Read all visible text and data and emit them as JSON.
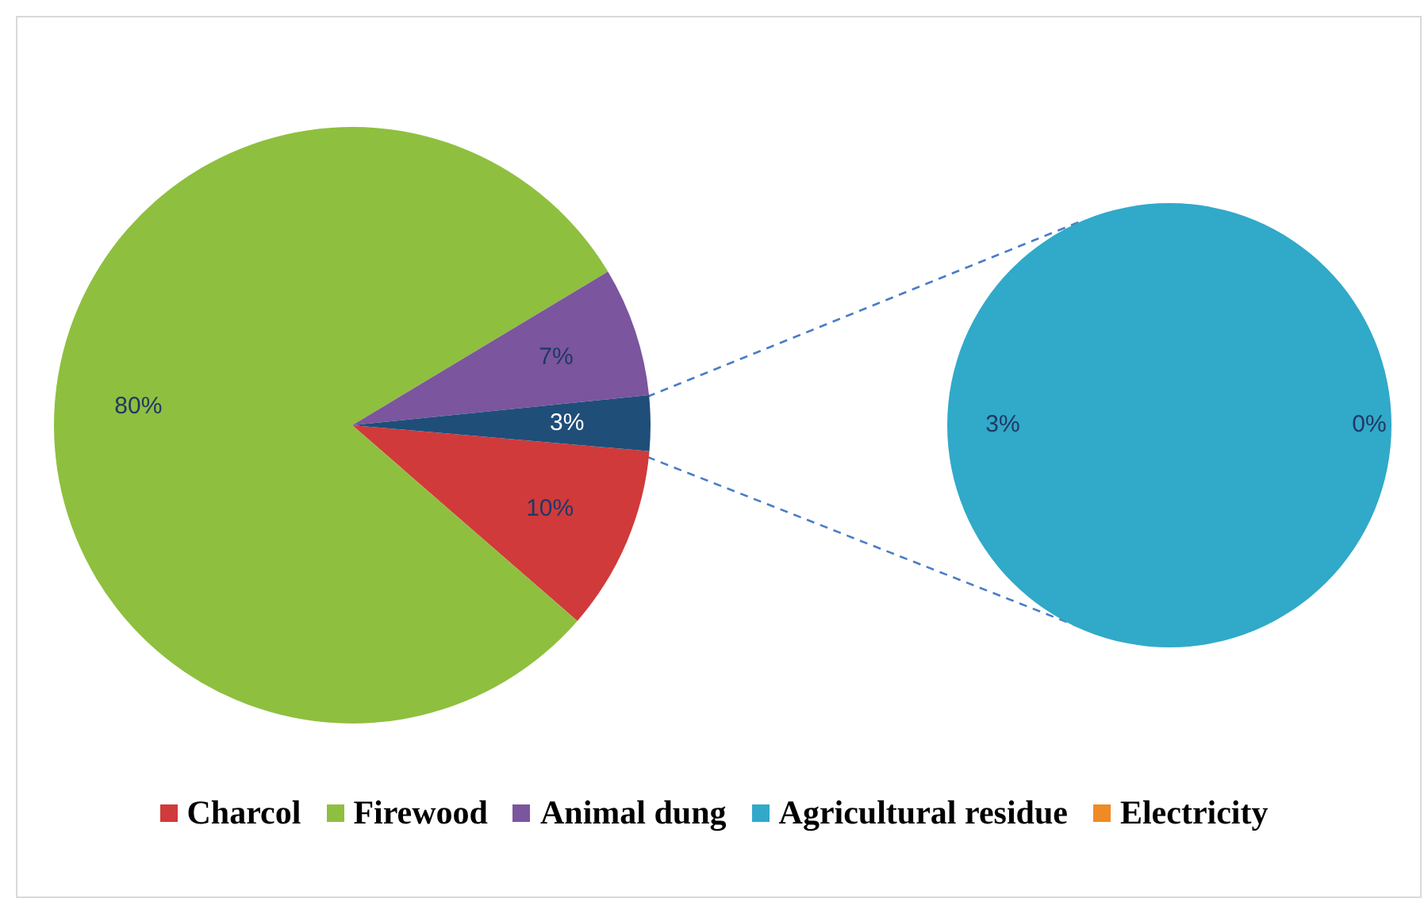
{
  "chart_data": [
    {
      "type": "pie",
      "categories": [
        "Charcol",
        "Firewood",
        "Animal dung",
        null
      ],
      "values": [
        10,
        80,
        7,
        3
      ],
      "colors": [
        "#d03a3a",
        "#8fbf3f",
        "#7b559e",
        "#1f4e79"
      ],
      "value_labels": [
        "10%",
        "80%",
        "7%",
        "3%"
      ],
      "legend": "bottom"
    },
    {
      "type": "pie",
      "categories": [
        "Agricultural residue",
        "Electricity"
      ],
      "values": [
        3,
        0
      ],
      "colors": [
        "#31a9c9",
        "#f08a24"
      ],
      "value_labels": [
        "3%",
        "0%"
      ],
      "legend": "bottom"
    }
  ]
}
